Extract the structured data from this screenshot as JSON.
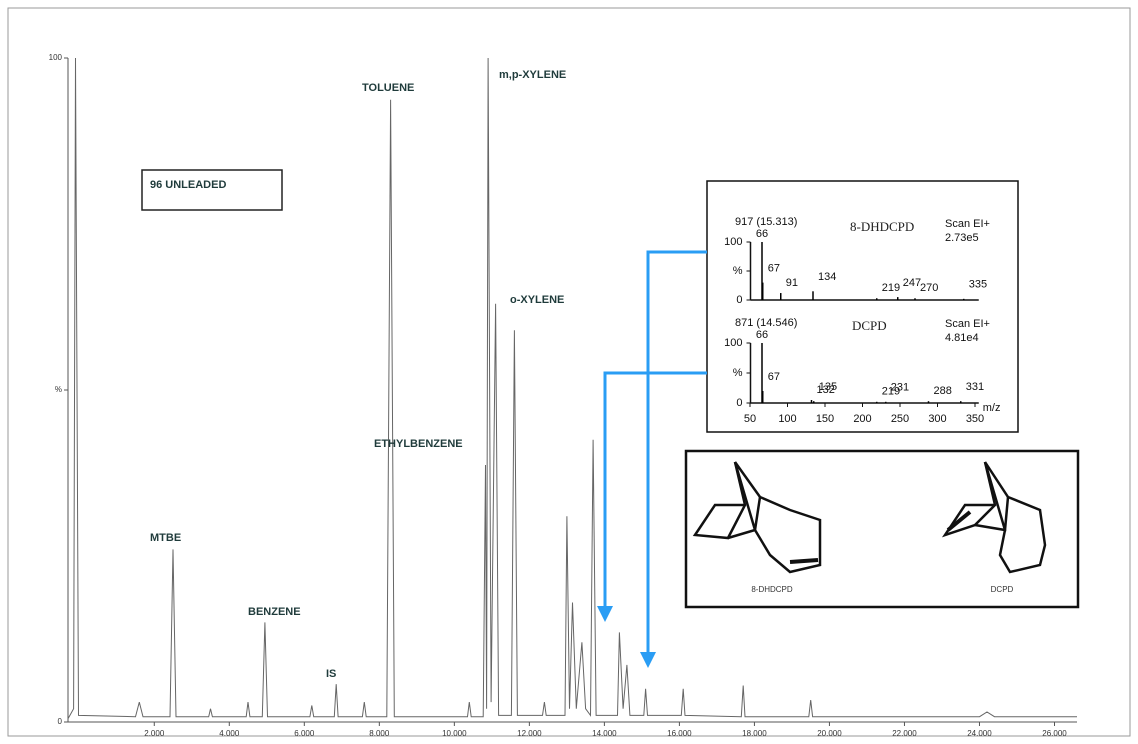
{
  "chart_data": [
    {
      "type": "line",
      "annotations": [
        "96 UNLEADED",
        "MTBE",
        "BENZENE",
        "IS",
        "TOLUENE",
        "ETHYLBENZENE",
        "m,p-XYLENE",
        "o-XYLENE"
      ],
      "x": [
        -0.3,
        -0.15,
        -0.1,
        -0.02,
        1.5,
        1.6,
        1.7,
        2.42,
        2.5,
        2.58,
        3.45,
        3.5,
        3.55,
        4.45,
        4.5,
        4.55,
        4.88,
        4.95,
        5.02,
        6.15,
        6.2,
        6.25,
        6.8,
        6.85,
        6.9,
        7.55,
        7.6,
        7.65,
        8.2,
        8.3,
        8.4,
        10.35,
        10.4,
        10.45,
        10.77,
        10.83,
        10.86,
        10.9,
        10.98,
        11.1,
        11.18,
        11.52,
        11.6,
        11.68,
        12.35,
        12.4,
        12.45,
        12.95,
        13.0,
        13.07,
        13.15,
        13.25,
        13.4,
        13.5,
        13.63,
        13.7,
        13.78,
        14.35,
        14.4,
        14.5,
        14.6,
        14.68,
        15.05,
        15.1,
        15.15,
        16.05,
        16.1,
        16.15,
        17.65,
        17.7,
        17.75,
        19.45,
        19.5,
        19.55,
        24.0,
        24.2,
        24.4,
        26.6
      ],
      "values": [
        0.5,
        2,
        100,
        1,
        0.8,
        3,
        0.8,
        0.8,
        26,
        0.8,
        0.8,
        2,
        0.8,
        0.8,
        3,
        0.8,
        0.8,
        15,
        0.8,
        0.8,
        2.5,
        0.8,
        0.8,
        5.7,
        0.8,
        0.8,
        3,
        0.8,
        0.8,
        93.7,
        0.8,
        0.8,
        3,
        0.8,
        0.8,
        38.7,
        2,
        100,
        3,
        63,
        1,
        1,
        59,
        1,
        1,
        3,
        1,
        1,
        31,
        2,
        18,
        2,
        12,
        2,
        1,
        42.5,
        1,
        1,
        13.5,
        2,
        8.6,
        1,
        1,
        5,
        1,
        1,
        5,
        1,
        0.8,
        5.5,
        0.8,
        0.8,
        3.3,
        0.8,
        0.8,
        1.5,
        0.8,
        0.8
      ],
      "color": "#666666",
      "xlim": [
        -0.3,
        26.6
      ],
      "ylim": [
        0,
        100
      ],
      "xticks": [
        {
          "value": 2,
          "label": "2.000"
        },
        {
          "value": 4,
          "label": "4.000"
        },
        {
          "value": 6,
          "label": "6.000"
        },
        {
          "value": 8,
          "label": "8.000"
        },
        {
          "value": 10,
          "label": "10.000"
        },
        {
          "value": 12,
          "label": "12.000"
        },
        {
          "value": 14,
          "label": "14.000"
        },
        {
          "value": 16,
          "label": "16.000"
        },
        {
          "value": 18,
          "label": "18.000"
        },
        {
          "value": 20,
          "label": "20.000"
        },
        {
          "value": 22,
          "label": "22.000"
        },
        {
          "value": 24,
          "label": "24.000"
        },
        {
          "value": 26,
          "label": "26.000"
        }
      ],
      "yticks": [
        0,
        {
          "value": 50,
          "label": "%"
        },
        100
      ]
    },
    {
      "type": "spectrum",
      "annotations": [
        "917 (15.313)",
        "8-DHDCPD",
        "Scan EI+",
        "2.73e5"
      ],
      "x": [
        66,
        67,
        91,
        134,
        219,
        247,
        270,
        335
      ],
      "values": [
        100,
        30,
        12,
        15,
        3,
        5,
        3,
        2
      ],
      "color": "#000000",
      "xlim": [
        40,
        355
      ],
      "ylim": [
        0,
        100
      ],
      "yticks": [
        0,
        {
          "value": 50,
          "label": "%"
        },
        100
      ]
    },
    {
      "type": "spectrum",
      "annotations": [
        "871 (14.546)",
        "DCPD",
        "Scan EI+",
        "4.81e4"
      ],
      "x": [
        66,
        67,
        132,
        135,
        219,
        231,
        288,
        331
      ],
      "values": [
        100,
        20,
        5,
        3,
        2,
        2,
        3,
        3
      ],
      "color": "#000000",
      "x_label": "m/z",
      "xlim": [
        40,
        355
      ],
      "ylim": [
        0,
        100
      ],
      "xticks": [
        50,
        100,
        150,
        200,
        250,
        300,
        350
      ],
      "yticks": [
        0,
        {
          "value": 50,
          "label": "%"
        },
        100
      ]
    }
  ],
  "structures": {
    "labels": [
      "8-DHDCPD",
      "DCPD"
    ]
  }
}
